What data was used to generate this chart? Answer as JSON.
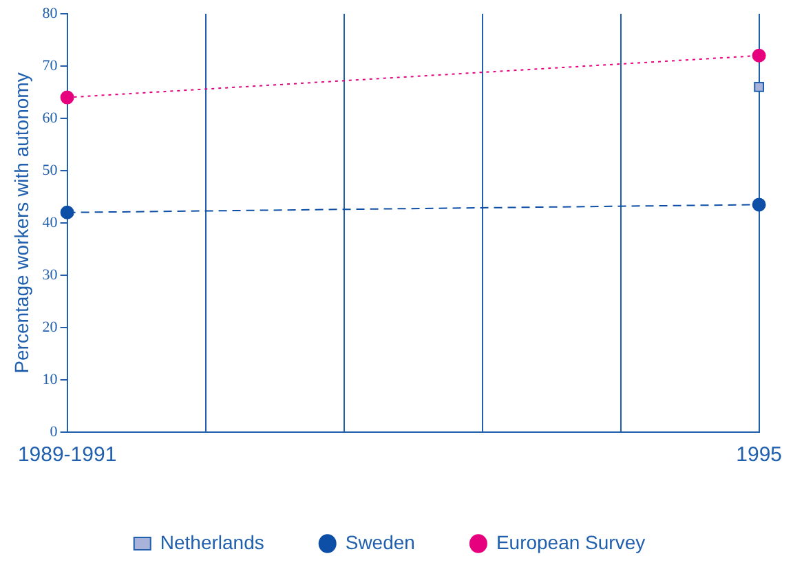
{
  "chart_data": {
    "type": "line",
    "ylabel": "Percentage workers with autonomy",
    "categories": [
      "1989-1991",
      null,
      null,
      null,
      null,
      "1995"
    ],
    "series": [
      {
        "name": "Netherlands",
        "type": "scatter",
        "color": "#a9b3d9",
        "marker": "square",
        "values": [
          null,
          null,
          null,
          null,
          null,
          66
        ]
      },
      {
        "name": "Sweden",
        "color": "#0d4ea6",
        "marker": "circle",
        "line_style": "dashed",
        "values": [
          42,
          null,
          null,
          null,
          null,
          43.5
        ]
      },
      {
        "name": "European Survey",
        "color": "#e6007e",
        "marker": "circle",
        "line_style": "dotted",
        "values": [
          64,
          null,
          null,
          null,
          null,
          72
        ]
      }
    ],
    "ylim": [
      0,
      80
    ],
    "yticks": [
      0,
      10,
      20,
      30,
      40,
      50,
      60,
      70,
      80
    ],
    "grid": "x",
    "legend": "bottom"
  }
}
